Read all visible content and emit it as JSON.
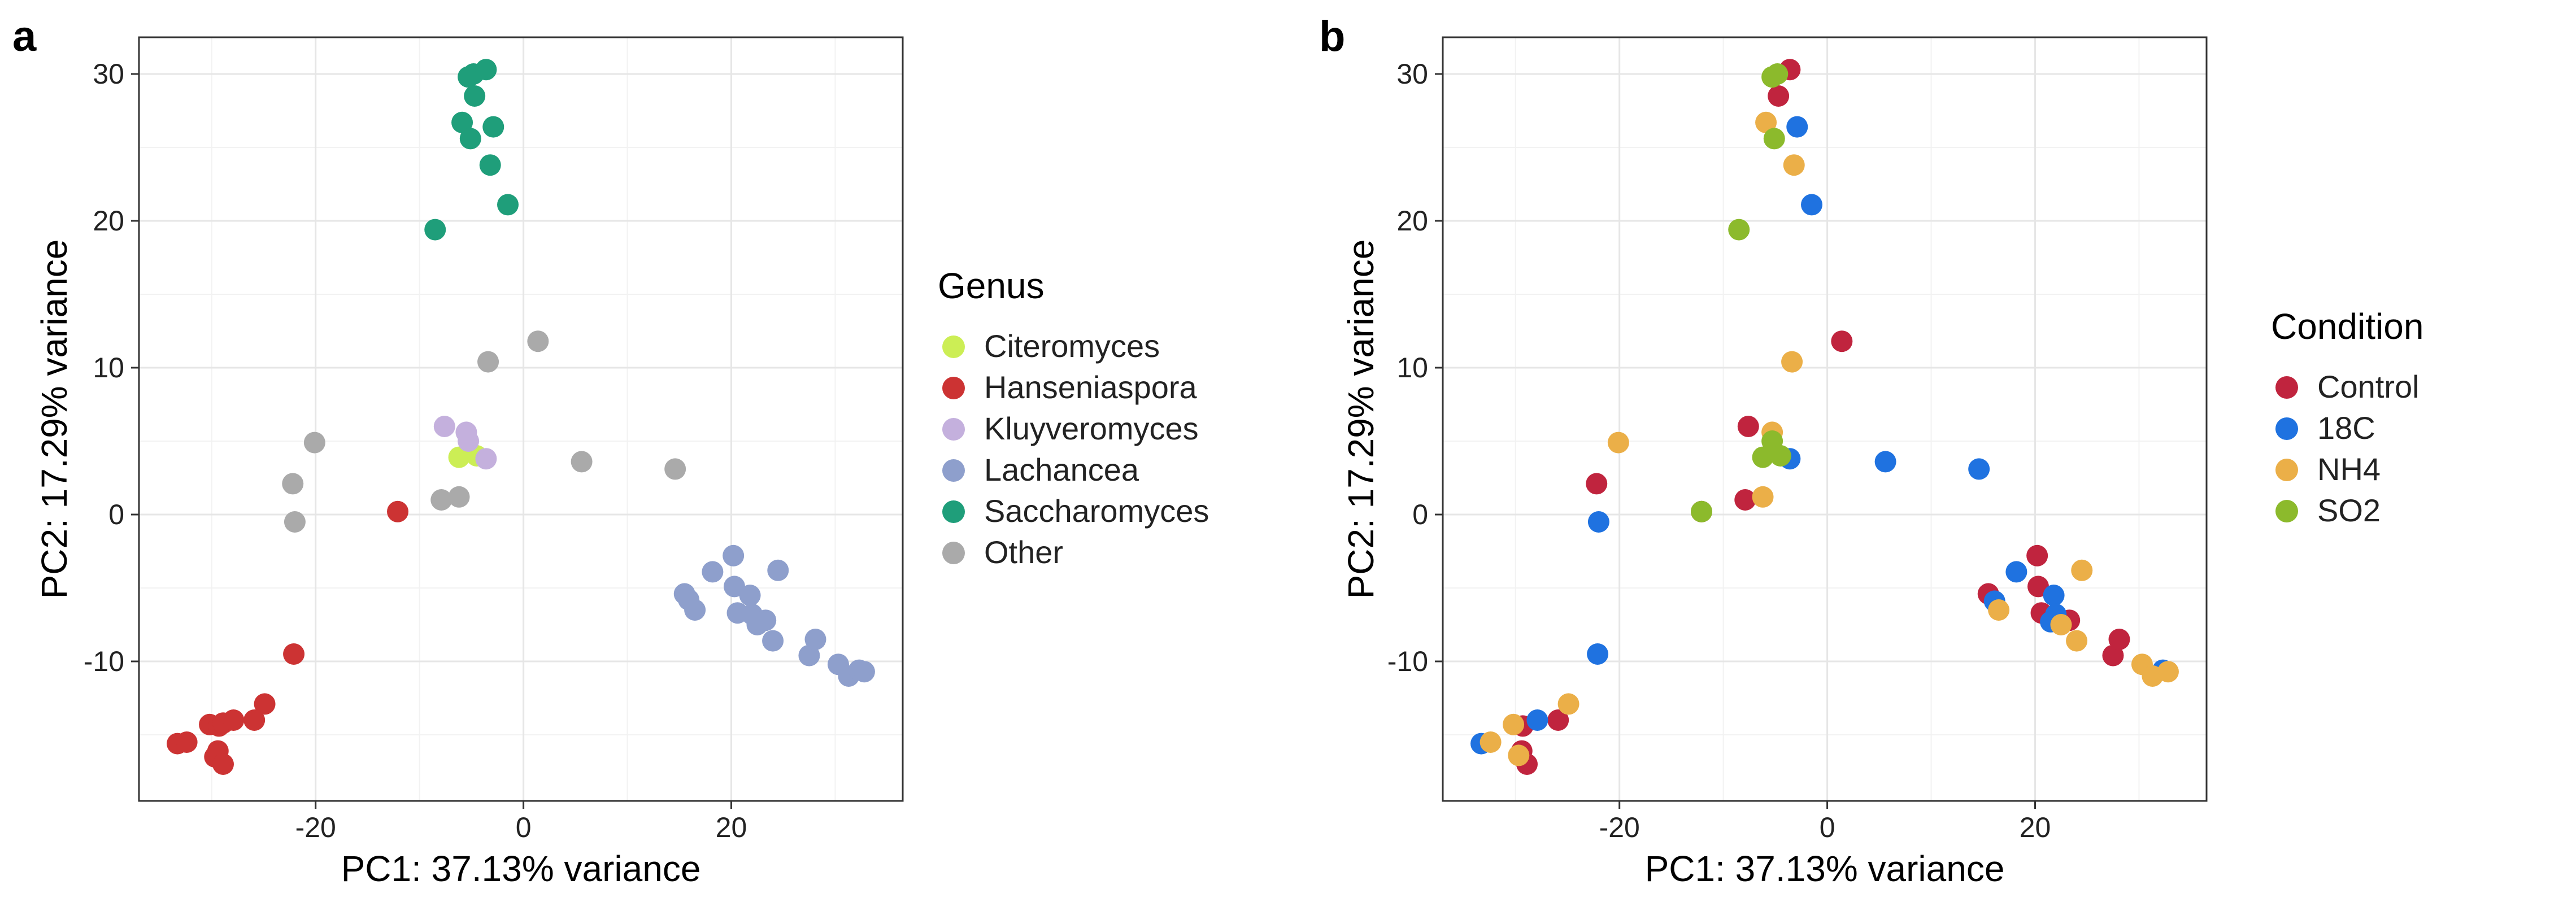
{
  "panels": [
    "a",
    "b"
  ],
  "chart_data": [
    {
      "panel": "a",
      "type": "scatter",
      "xlabel": "PC1: 37.13% variance",
      "ylabel": "PC2: 17.29% variance",
      "xlim": [
        -37,
        36.5
      ],
      "ylim": [
        -19.5,
        32.5
      ],
      "xticks": [
        -20,
        0,
        20
      ],
      "yticks": [
        -10,
        0,
        10,
        20,
        30
      ],
      "grid": true,
      "legend": {
        "title": "Genus",
        "placement": "right"
      },
      "series": [
        {
          "name": "Citeromyces",
          "color": "#CCEE55",
          "points": [
            [
              -6.2,
              3.9
            ],
            [
              -4.5,
              4.0
            ]
          ]
        },
        {
          "name": "Hanseniaspora",
          "color": "#CC3333",
          "points": [
            [
              -33.3,
              -15.6
            ],
            [
              -32.4,
              -15.5
            ],
            [
              -30.2,
              -14.3
            ],
            [
              -29.3,
              -14.4
            ],
            [
              -28.9,
              -14.2
            ],
            [
              -27.9,
              -14.0
            ],
            [
              -25.9,
              -14.0
            ],
            [
              -24.9,
              -12.9
            ],
            [
              -29.7,
              -16.5
            ],
            [
              -29.4,
              -16.1
            ],
            [
              -28.9,
              -17.0
            ],
            [
              -22.1,
              -9.5
            ],
            [
              -12.1,
              0.2
            ]
          ]
        },
        {
          "name": "Kluyveromyces",
          "color": "#C4B0DD",
          "points": [
            [
              -7.6,
              6.0
            ],
            [
              -5.5,
              5.6
            ],
            [
              -5.3,
              5.0
            ],
            [
              -3.6,
              3.8
            ]
          ]
        },
        {
          "name": "Lachancea",
          "color": "#8E9FCC",
          "points": [
            [
              15.5,
              -5.4
            ],
            [
              15.9,
              -5.8
            ],
            [
              16.5,
              -6.5
            ],
            [
              18.2,
              -3.9
            ],
            [
              20.2,
              -2.8
            ],
            [
              20.3,
              -4.9
            ],
            [
              20.6,
              -6.7
            ],
            [
              21.8,
              -5.5
            ],
            [
              22.0,
              -6.8
            ],
            [
              22.5,
              -7.5
            ],
            [
              23.3,
              -7.2
            ],
            [
              24.0,
              -8.6
            ],
            [
              24.5,
              -3.8
            ],
            [
              27.5,
              -9.6
            ],
            [
              28.1,
              -8.5
            ],
            [
              30.3,
              -10.2
            ],
            [
              31.3,
              -11.0
            ],
            [
              32.3,
              -10.6
            ],
            [
              32.8,
              -10.7
            ]
          ]
        },
        {
          "name": "Saccharomyces",
          "color": "#1F9E7A",
          "points": [
            [
              -5.3,
              29.8
            ],
            [
              -4.8,
              30.0
            ],
            [
              -3.6,
              30.3
            ],
            [
              -4.7,
              28.5
            ],
            [
              -5.9,
              26.7
            ],
            [
              -5.1,
              25.6
            ],
            [
              -2.9,
              26.4
            ],
            [
              -3.2,
              23.8
            ],
            [
              -1.5,
              21.1
            ],
            [
              -8.5,
              19.4
            ]
          ]
        },
        {
          "name": "Other",
          "color": "#AAAAAA",
          "points": [
            [
              -20.1,
              4.9
            ],
            [
              -22.2,
              2.1
            ],
            [
              -22.0,
              -0.5
            ],
            [
              -7.9,
              1.0
            ],
            [
              -6.2,
              1.2
            ],
            [
              -3.4,
              10.4
            ],
            [
              1.4,
              11.8
            ],
            [
              5.6,
              3.6
            ],
            [
              14.6,
              3.1
            ]
          ]
        }
      ]
    },
    {
      "panel": "b",
      "type": "scatter",
      "xlabel": "PC1: 37.13% variance",
      "ylabel": "PC2: 17.29% variance",
      "xlim": [
        -37,
        36.5
      ],
      "ylim": [
        -19.5,
        32.5
      ],
      "xticks": [
        -20,
        0,
        20
      ],
      "yticks": [
        -10,
        0,
        10,
        20,
        30
      ],
      "grid": true,
      "legend": {
        "title": "Condition",
        "placement": "right"
      },
      "series": [
        {
          "name": "Control",
          "color": "#C0243E",
          "points": [
            [
              -3.6,
              30.3
            ],
            [
              -4.7,
              28.5
            ],
            [
              1.4,
              11.8
            ],
            [
              -7.6,
              6.0
            ],
            [
              -7.9,
              1.0
            ],
            [
              -22.2,
              2.1
            ],
            [
              -12.1,
              0.2
            ],
            [
              20.2,
              -2.8
            ],
            [
              20.3,
              -4.9
            ],
            [
              15.5,
              -5.4
            ],
            [
              20.6,
              -6.7
            ],
            [
              23.3,
              -7.2
            ],
            [
              27.5,
              -9.6
            ],
            [
              28.1,
              -8.5
            ],
            [
              -25.9,
              -14.0
            ],
            [
              -29.4,
              -16.1
            ],
            [
              -28.9,
              -17.0
            ],
            [
              -29.3,
              -14.4
            ]
          ]
        },
        {
          "name": "18C",
          "color": "#1F72E0",
          "points": [
            [
              -2.9,
              26.4
            ],
            [
              -1.5,
              21.1
            ],
            [
              5.6,
              3.6
            ],
            [
              14.6,
              3.1
            ],
            [
              -3.6,
              3.8
            ],
            [
              -22.0,
              -0.5
            ],
            [
              -22.1,
              -9.5
            ],
            [
              18.2,
              -3.9
            ],
            [
              21.8,
              -5.5
            ],
            [
              22.0,
              -6.8
            ],
            [
              16.1,
              -5.9
            ],
            [
              21.5,
              -7.3
            ],
            [
              -33.3,
              -15.6
            ],
            [
              -27.9,
              -14.0
            ],
            [
              32.3,
              -10.6
            ]
          ]
        },
        {
          "name": "NH4",
          "color": "#EBAF48",
          "points": [
            [
              -5.9,
              26.7
            ],
            [
              -3.2,
              23.8
            ],
            [
              -3.4,
              10.4
            ],
            [
              -20.1,
              4.9
            ],
            [
              -5.3,
              5.6
            ],
            [
              -6.2,
              1.2
            ],
            [
              24.5,
              -3.8
            ],
            [
              16.5,
              -6.5
            ],
            [
              22.5,
              -7.5
            ],
            [
              24.0,
              -8.6
            ],
            [
              30.3,
              -10.2
            ],
            [
              31.3,
              -11.0
            ],
            [
              32.8,
              -10.7
            ],
            [
              -24.9,
              -12.9
            ],
            [
              -32.4,
              -15.5
            ],
            [
              -30.2,
              -14.3
            ],
            [
              -29.7,
              -16.4
            ]
          ]
        },
        {
          "name": "SO2",
          "color": "#8CBA2C",
          "points": [
            [
              -5.3,
              29.8
            ],
            [
              -4.8,
              30.0
            ],
            [
              -5.1,
              25.6
            ],
            [
              -8.5,
              19.4
            ],
            [
              -5.3,
              5.0
            ],
            [
              -4.5,
              4.0
            ],
            [
              -6.2,
              3.9
            ],
            [
              -12.1,
              0.2
            ]
          ]
        }
      ]
    }
  ]
}
